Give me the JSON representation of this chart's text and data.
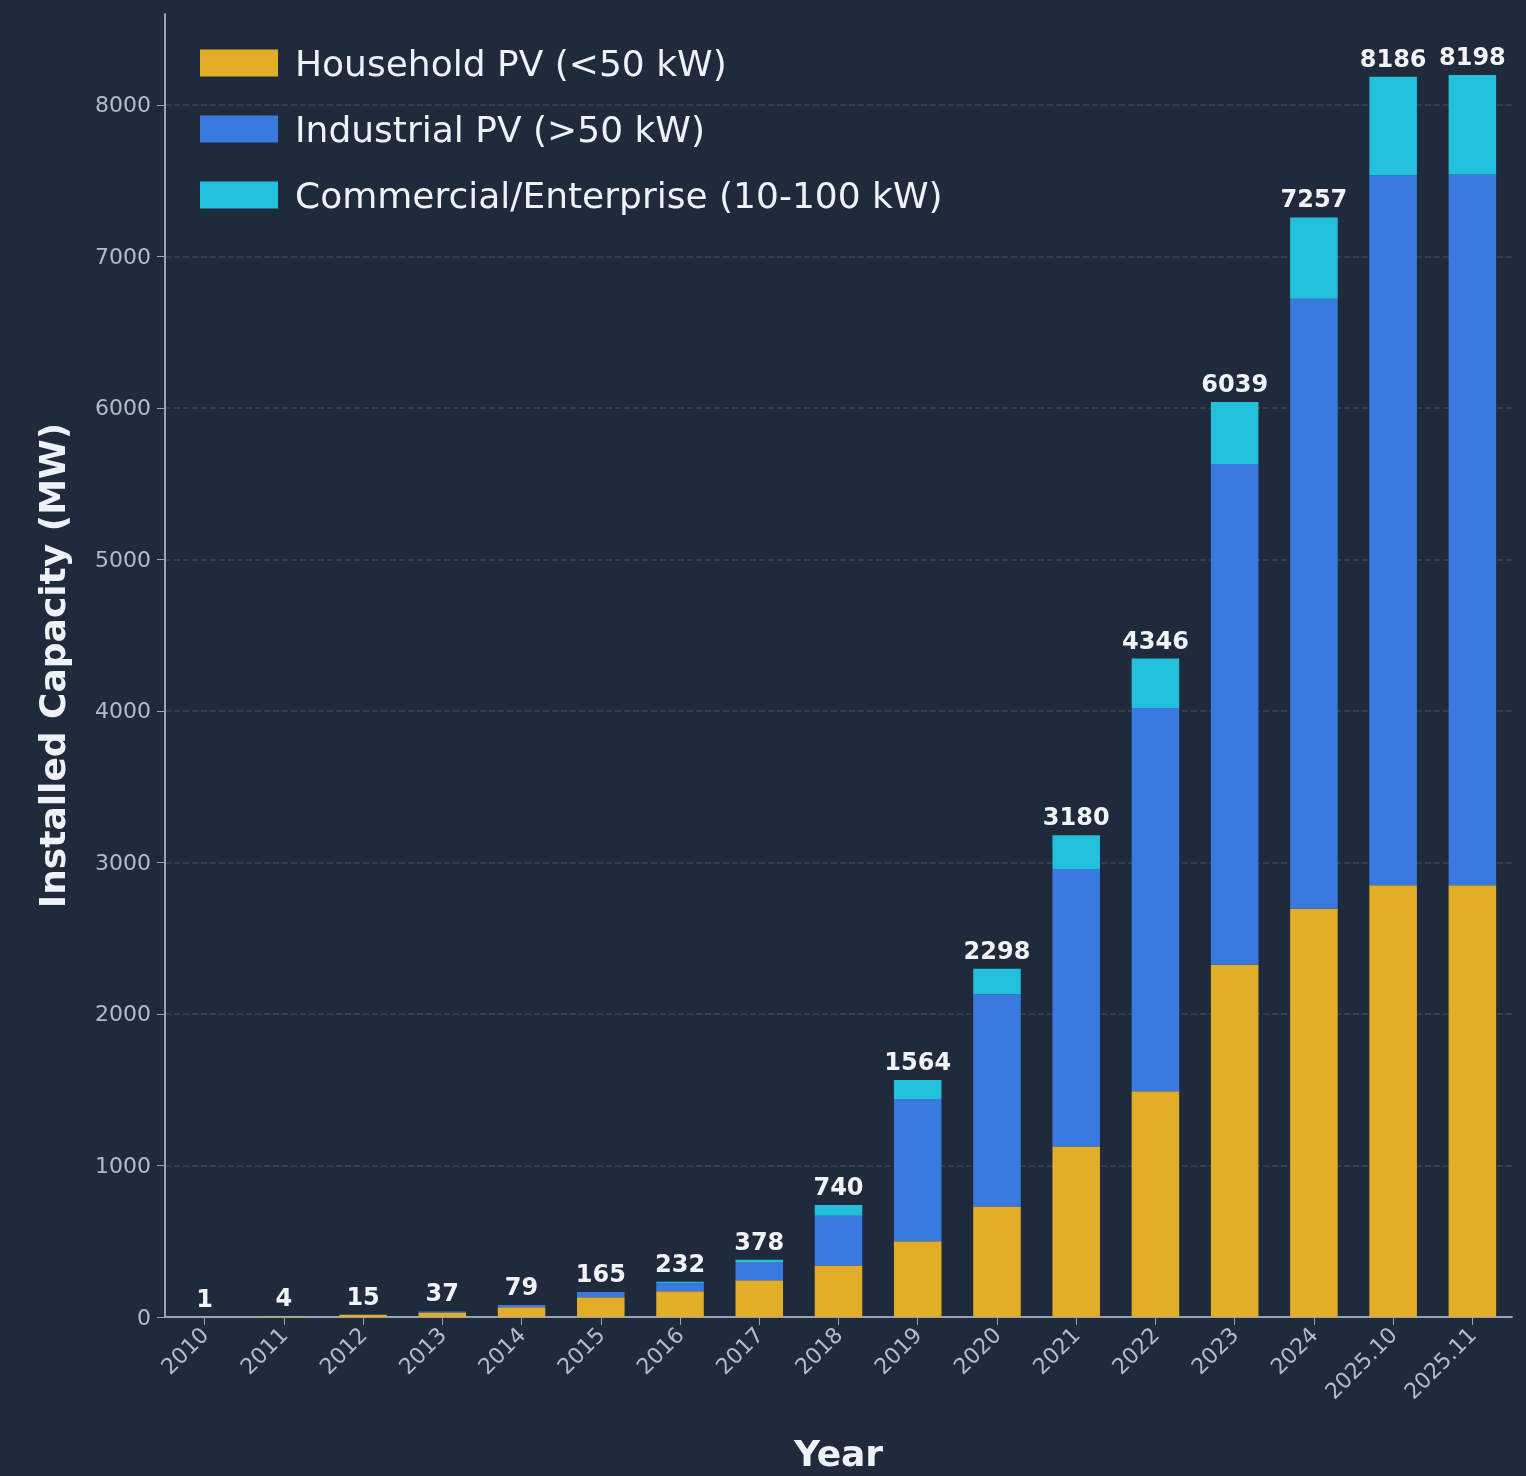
{
  "chart_data": {
    "type": "bar",
    "stacked": true,
    "xlabel": "Year",
    "ylabel": "Installed Capacity (MW)",
    "categories": [
      "2010",
      "2011",
      "2012",
      "2013",
      "2014",
      "2015",
      "2016",
      "2017",
      "2018",
      "2019",
      "2020",
      "2021",
      "2022",
      "2023",
      "2024",
      "2025.10",
      "2025.11"
    ],
    "series": [
      {
        "name": "Household PV (<50 kW)",
        "color": "#e3ae27",
        "values": [
          null,
          4,
          15,
          30,
          65,
          130,
          170,
          243,
          340,
          500,
          730,
          1125,
          1490,
          2325,
          2695,
          2850,
          2850
        ]
      },
      {
        "name": "Industrial PV (>50 kW)",
        "color": "#3a7ae0",
        "values": [
          0,
          0,
          0,
          7,
          14,
          35,
          52,
          117,
          329,
          936,
          1400,
          1832,
          2530,
          3305,
          4025,
          4685,
          4690
        ]
      },
      {
        "name": "Commercial/Enterprise (10-100 kW)",
        "color": "#22c0db",
        "values": [
          0,
          0,
          0,
          0,
          0,
          0,
          10,
          18,
          71,
          128,
          168,
          223,
          326,
          409,
          537,
          651,
          658
        ]
      }
    ],
    "totals": [
      "1",
      "4",
      "15",
      "37",
      "79",
      "165",
      "232",
      "378",
      "740",
      "1564",
      "2298",
      "3180",
      "4346",
      "6039",
      "7257",
      "8186",
      "8198"
    ],
    "ylim": [
      0,
      8600
    ],
    "yticks": [
      0,
      1000,
      2000,
      3000,
      4000,
      5000,
      6000,
      7000,
      8000
    ],
    "grid": "y",
    "legend": "top left"
  }
}
